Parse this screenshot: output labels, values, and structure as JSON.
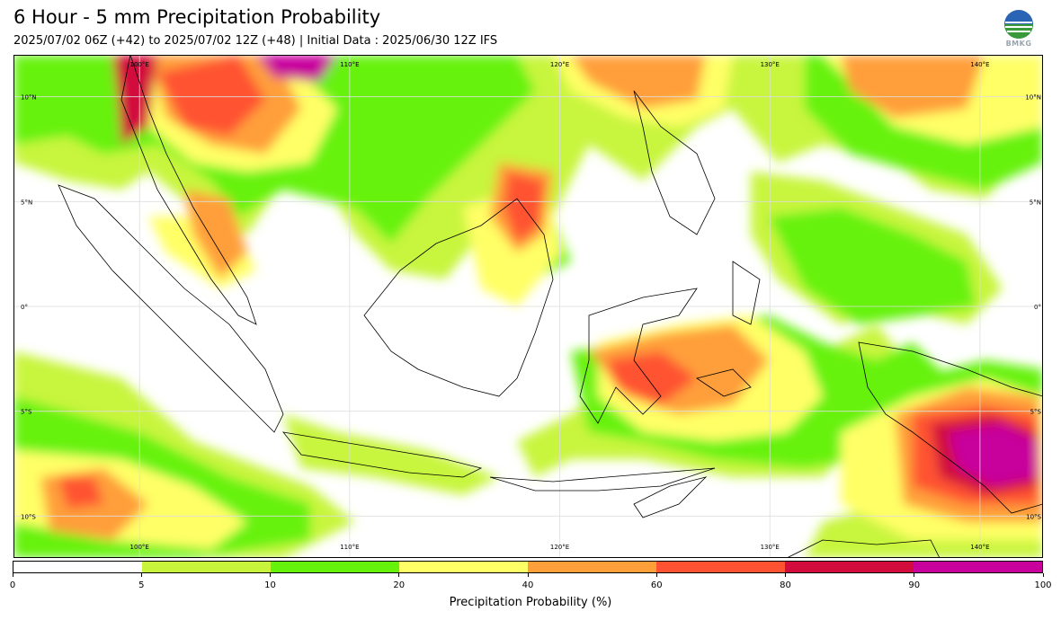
{
  "header": {
    "title": "6 Hour - 5 mm Precipitation Probability",
    "subtitle": "2025/07/02 06Z (+42) to 2025/07/02 12Z (+48) | Initial Data : 2025/06/30 12Z IFS",
    "logo_text": "BMKG"
  },
  "map": {
    "lon_range": [
      94,
      143
    ],
    "lat_range": [
      -12,
      12
    ],
    "lon_labels_top": [
      "100°E",
      "110°E",
      "120°E",
      "130°E",
      "140°E"
    ],
    "lon_labels_bottom": [
      "100°E",
      "110°E",
      "120°E",
      "130°E",
      "140°E"
    ],
    "lat_labels_left": [
      "10°N",
      "5°N",
      "0°",
      "5°S",
      "10°S"
    ],
    "lat_labels_right": [
      "10°N",
      "5°N",
      "0°",
      "5°S",
      "10°S"
    ],
    "gridlines": true
  },
  "colorbar": {
    "label": "Precipitation Probability (%)",
    "ticks": [
      "0",
      "5",
      "10",
      "20",
      "40",
      "60",
      "80",
      "90",
      "100"
    ],
    "colors": [
      "#ffffff",
      "#c8f53c",
      "#66f20a",
      "#ffff66",
      "#ff9f3a",
      "#ff5233",
      "#d20c3c",
      "#c8009c"
    ]
  }
}
